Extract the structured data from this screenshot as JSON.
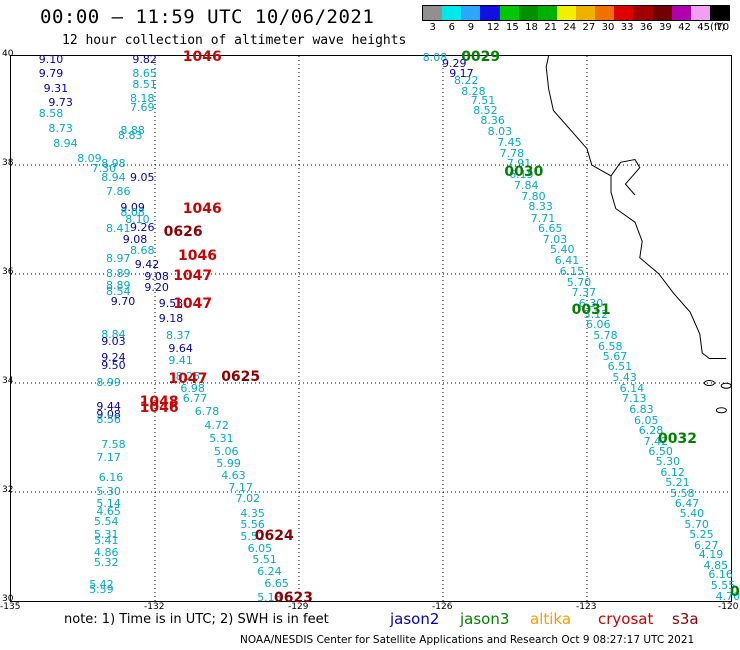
{
  "header": {
    "title": "00:00 – 11:59 UTC 10/06/2021",
    "subtitle": "12 hour collection of altimeter wave heights"
  },
  "colorbar": {
    "labels": [
      "3",
      "6",
      "9",
      "12",
      "15",
      "18",
      "21",
      "24",
      "27",
      "30",
      "33",
      "36",
      "39",
      "42",
      "45",
      "70",
      "(ft)"
    ],
    "colors": [
      "#909090",
      "#00e8e8",
      "#2aa8ff",
      "#1010e0",
      "#00c800",
      "#009000",
      "#00b000",
      "#f0f000",
      "#f0b000",
      "#f07000",
      "#e00000",
      "#a00000",
      "#700000",
      "#b000b0",
      "#f0a0f0",
      "#000000"
    ]
  },
  "axes": {
    "y_ticks": [
      "40",
      "38",
      "36",
      "34",
      "32",
      "30"
    ],
    "x_ticks": [
      "-135",
      "-132",
      "-129",
      "-126",
      "-123",
      "-120"
    ]
  },
  "map_data": {
    "region": {
      "lon": [
        -135,
        -120
      ],
      "lat": [
        30,
        40
      ]
    },
    "color_key": {
      "jason2": "#0000c0",
      "jason3": "#008000",
      "altika": "#ff9900",
      "cryosat": "#cc0000",
      "s3a": "#8b0000",
      "cyan": "#00aacc"
    },
    "tracks": [
      {
        "pass": "1046",
        "sat": "cryosat",
        "segments": [
          {
            "lon": -132.05,
            "lat": 39.94,
            "vals": [
              "9.82",
              "8.65",
              "8.51",
              "8.18",
              "7.69"
            ]
          },
          {
            "lon": -132.35,
            "lat": 38.24,
            "vals": [
              "8.88",
              "8.83",
              "8.98",
              "8.05",
              "7.86"
            ]
          }
        ]
      },
      {
        "pass": "0029",
        "sat": "jason3"
      },
      {
        "pass": "0030",
        "sat": "jason3"
      },
      {
        "pass": "0031",
        "sat": "jason3"
      },
      {
        "pass": "0032",
        "sat": "jason3"
      },
      {
        "pass": "0626",
        "sat": "s3a"
      },
      {
        "pass": "1047",
        "sat": "cryosat"
      },
      {
        "pass": "0625",
        "sat": "s3a"
      },
      {
        "pass": "1048",
        "sat": "cryosat"
      },
      {
        "pass": "0624",
        "sat": "s3a"
      },
      {
        "pass": "0623",
        "sat": "s3a"
      }
    ]
  },
  "pass_labels": [
    {
      "text": "1046",
      "sat": "cryosat",
      "lon": -131.4,
      "lat": 39.96
    },
    {
      "text": "1046",
      "sat": "cryosat",
      "lon": -131.4,
      "lat": 37.18
    },
    {
      "text": "1046",
      "sat": "cryosat",
      "lon": -131.5,
      "lat": 36.32
    },
    {
      "text": "1047",
      "sat": "cryosat",
      "lon": -131.6,
      "lat": 35.94
    },
    {
      "text": "1047",
      "sat": "cryosat",
      "lon": -131.6,
      "lat": 35.44
    },
    {
      "text": "1047",
      "sat": "cryosat",
      "lon": -131.7,
      "lat": 34.06
    },
    {
      "text": "1048",
      "sat": "cryosat",
      "lon": -132.3,
      "lat": 33.63
    },
    {
      "text": "1046",
      "sat": "cryosat",
      "lon": -132.3,
      "lat": 33.52
    },
    {
      "text": "0626",
      "sat": "s3a",
      "lon": -131.8,
      "lat": 36.75
    },
    {
      "text": "0625",
      "sat": "s3a",
      "lon": -130.6,
      "lat": 34.1
    },
    {
      "text": "0624",
      "sat": "s3a",
      "lon": -129.9,
      "lat": 31.17
    },
    {
      "text": "0623",
      "sat": "s3a",
      "lon": -129.5,
      "lat": 30.03
    },
    {
      "text": "0029",
      "sat": "jason3",
      "lon": -125.6,
      "lat": 39.96
    },
    {
      "text": "0030",
      "sat": "jason3",
      "lon": -124.7,
      "lat": 37.85
    },
    {
      "text": "0031",
      "sat": "jason3",
      "lon": -123.3,
      "lat": 35.33
    },
    {
      "text": "0032",
      "sat": "jason3",
      "lon": -121.5,
      "lat": 32.95
    },
    {
      "text": "0",
      "sat": "jason3",
      "lon": -120.0,
      "lat": 30.15
    }
  ],
  "wave_heights": [
    {
      "v": "9.10",
      "c": "jason2",
      "lon": -134.4,
      "lat": 39.9
    },
    {
      "v": "9.82",
      "c": "jason2",
      "lon": -132.45,
      "lat": 39.9
    },
    {
      "v": "9.79",
      "c": "jason2",
      "lon": -134.4,
      "lat": 39.65
    },
    {
      "v": "8.65",
      "c": "cyan",
      "lon": -132.45,
      "lat": 39.65
    },
    {
      "v": "9.31",
      "c": "jason2",
      "lon": -134.3,
      "lat": 39.38
    },
    {
      "v": "8.51",
      "c": "cyan",
      "lon": -132.45,
      "lat": 39.45
    },
    {
      "v": "9.73",
      "c": "jason2",
      "lon": -134.2,
      "lat": 39.12
    },
    {
      "v": "8.18",
      "c": "cyan",
      "lon": -132.5,
      "lat": 39.2
    },
    {
      "v": "7.69",
      "c": "cyan",
      "lon": -132.5,
      "lat": 39.02
    },
    {
      "v": "8.58",
      "c": "cyan",
      "lon": -134.4,
      "lat": 38.92
    },
    {
      "v": "8.73",
      "c": "cyan",
      "lon": -134.2,
      "lat": 38.64
    },
    {
      "v": "8.88",
      "c": "cyan",
      "lon": -132.7,
      "lat": 38.6
    },
    {
      "v": "8.83",
      "c": "cyan",
      "lon": -132.75,
      "lat": 38.52
    },
    {
      "v": "8.94",
      "c": "cyan",
      "lon": -134.1,
      "lat": 38.36
    },
    {
      "v": "8.09",
      "c": "cyan",
      "lon": -133.6,
      "lat": 38.1
    },
    {
      "v": "8.98",
      "c": "cyan",
      "lon": -133.1,
      "lat": 38.0
    },
    {
      "v": "7.30",
      "c": "cyan",
      "lon": -133.3,
      "lat": 37.9
    },
    {
      "v": "8.94",
      "c": "cyan",
      "lon": -133.1,
      "lat": 37.75
    },
    {
      "v": "9.05",
      "c": "jason2",
      "lon": -132.5,
      "lat": 37.75
    },
    {
      "v": "7.86",
      "c": "cyan",
      "lon": -133.0,
      "lat": 37.48
    },
    {
      "v": "9.09",
      "c": "jason2",
      "lon": -132.7,
      "lat": 37.2
    },
    {
      "v": "8.08",
      "c": "cyan",
      "lon": -132.7,
      "lat": 37.1
    },
    {
      "v": "8.10",
      "c": "cyan",
      "lon": -132.6,
      "lat": 36.98
    },
    {
      "v": "8.41",
      "c": "cyan",
      "lon": -133.0,
      "lat": 36.8
    },
    {
      "v": "9.26",
      "c": "jason2",
      "lon": -132.5,
      "lat": 36.82
    },
    {
      "v": "9.08",
      "c": "jason2",
      "lon": -132.65,
      "lat": 36.6
    },
    {
      "v": "8.68",
      "c": "cyan",
      "lon": -132.5,
      "lat": 36.4
    },
    {
      "v": "8.97",
      "c": "cyan",
      "lon": -133.0,
      "lat": 36.25
    },
    {
      "v": "9.42",
      "c": "jason2",
      "lon": -132.4,
      "lat": 36.15
    },
    {
      "v": "8.89",
      "c": "cyan",
      "lon": -133.0,
      "lat": 35.98
    },
    {
      "v": "9.08",
      "c": "jason2",
      "lon": -132.2,
      "lat": 35.93
    },
    {
      "v": "8.89",
      "c": "cyan",
      "lon": -133.0,
      "lat": 35.77
    },
    {
      "v": "9.20",
      "c": "jason2",
      "lon": -132.2,
      "lat": 35.72
    },
    {
      "v": "8.54",
      "c": "cyan",
      "lon": -133.0,
      "lat": 35.65
    },
    {
      "v": "9.70",
      "c": "jason2",
      "lon": -132.9,
      "lat": 35.47
    },
    {
      "v": "9.53",
      "c": "jason2",
      "lon": -131.9,
      "lat": 35.43
    },
    {
      "v": "9.18",
      "c": "jason2",
      "lon": -131.9,
      "lat": 35.15
    },
    {
      "v": "8.84",
      "c": "cyan",
      "lon": -133.1,
      "lat": 34.87
    },
    {
      "v": "8.37",
      "c": "cyan",
      "lon": -131.75,
      "lat": 34.85
    },
    {
      "v": "9.03",
      "c": "jason2",
      "lon": -133.1,
      "lat": 34.74
    },
    {
      "v": "9.64",
      "c": "jason2",
      "lon": -131.7,
      "lat": 34.6
    },
    {
      "v": "9.24",
      "c": "jason2",
      "lon": -133.1,
      "lat": 34.44
    },
    {
      "v": "9.41",
      "c": "cyan",
      "lon": -131.7,
      "lat": 34.38
    },
    {
      "v": "9.50",
      "c": "jason2",
      "lon": -133.1,
      "lat": 34.3
    },
    {
      "v": "8.25",
      "c": "cyan",
      "lon": -131.55,
      "lat": 34.1
    },
    {
      "v": "8.99",
      "c": "cyan",
      "lon": -133.2,
      "lat": 33.98
    },
    {
      "v": "6.98",
      "c": "cyan",
      "lon": -131.45,
      "lat": 33.88
    },
    {
      "v": "6.77",
      "c": "cyan",
      "lon": -131.4,
      "lat": 33.68
    },
    {
      "v": "9.44",
      "c": "jason2",
      "lon": -133.2,
      "lat": 33.55
    },
    {
      "v": "6.78",
      "c": "cyan",
      "lon": -131.15,
      "lat": 33.45
    },
    {
      "v": "9.08",
      "c": "jason2",
      "lon": -133.2,
      "lat": 33.4
    },
    {
      "v": "8.56",
      "c": "cyan",
      "lon": -133.2,
      "lat": 33.3
    },
    {
      "v": "4.72",
      "c": "cyan",
      "lon": -130.95,
      "lat": 33.2
    },
    {
      "v": "5.31",
      "c": "cyan",
      "lon": -130.85,
      "lat": 32.95
    },
    {
      "v": "7.58",
      "c": "cyan",
      "lon": -133.1,
      "lat": 32.84
    },
    {
      "v": "5.06",
      "c": "cyan",
      "lon": -130.75,
      "lat": 32.72
    },
    {
      "v": "7.17",
      "c": "cyan",
      "lon": -133.2,
      "lat": 32.6
    },
    {
      "v": "5.99",
      "c": "cyan",
      "lon": -130.7,
      "lat": 32.5
    },
    {
      "v": "4.63",
      "c": "cyan",
      "lon": -130.6,
      "lat": 32.28
    },
    {
      "v": "6.16",
      "c": "cyan",
      "lon": -133.15,
      "lat": 32.24
    },
    {
      "v": "7.17",
      "c": "cyan",
      "lon": -130.45,
      "lat": 32.06
    },
    {
      "v": "5.30",
      "c": "cyan",
      "lon": -133.2,
      "lat": 31.98
    },
    {
      "v": "7.02",
      "c": "cyan",
      "lon": -130.3,
      "lat": 31.85
    },
    {
      "v": "5.14",
      "c": "cyan",
      "lon": -133.2,
      "lat": 31.76
    },
    {
      "v": "4.65",
      "c": "cyan",
      "lon": -133.2,
      "lat": 31.62
    },
    {
      "v": "4.35",
      "c": "cyan",
      "lon": -130.2,
      "lat": 31.58
    },
    {
      "v": "5.54",
      "c": "cyan",
      "lon": -133.25,
      "lat": 31.44
    },
    {
      "v": "5.56",
      "c": "cyan",
      "lon": -130.2,
      "lat": 31.37
    },
    {
      "v": "5.31",
      "c": "cyan",
      "lon": -133.25,
      "lat": 31.2
    },
    {
      "v": "5.52",
      "c": "cyan",
      "lon": -130.2,
      "lat": 31.15
    },
    {
      "v": "5.41",
      "c": "cyan",
      "lon": -133.25,
      "lat": 31.08
    },
    {
      "v": "6.05",
      "c": "cyan",
      "lon": -130.05,
      "lat": 30.94
    },
    {
      "v": "4.86",
      "c": "cyan",
      "lon": -133.25,
      "lat": 30.86
    },
    {
      "v": "5.51",
      "c": "cyan",
      "lon": -129.95,
      "lat": 30.73
    },
    {
      "v": "5.32",
      "c": "cyan",
      "lon": -133.25,
      "lat": 30.67
    },
    {
      "v": "6.24",
      "c": "cyan",
      "lon": -129.85,
      "lat": 30.51
    },
    {
      "v": "5.42",
      "c": "cyan",
      "lon": -133.35,
      "lat": 30.28
    },
    {
      "v": "6.65",
      "c": "cyan",
      "lon": -129.7,
      "lat": 30.3
    },
    {
      "v": "5.59",
      "c": "cyan",
      "lon": -133.35,
      "lat": 30.18
    },
    {
      "v": "5.18",
      "c": "cyan",
      "lon": -129.85,
      "lat": 30.04
    },
    {
      "v": "8.08",
      "c": "cyan",
      "lon": -126.4,
      "lat": 39.95
    },
    {
      "v": "9.29",
      "c": "jason2",
      "lon": -126.0,
      "lat": 39.83
    },
    {
      "v": "9.17",
      "c": "jason2",
      "lon": -125.85,
      "lat": 39.65
    },
    {
      "v": "8.22",
      "c": "cyan",
      "lon": -125.75,
      "lat": 39.52
    },
    {
      "v": "8.28",
      "c": "cyan",
      "lon": -125.6,
      "lat": 39.33
    },
    {
      "v": "7.51",
      "c": "cyan",
      "lon": -125.4,
      "lat": 39.15
    },
    {
      "v": "8.52",
      "c": "cyan",
      "lon": -125.35,
      "lat": 38.98
    },
    {
      "v": "8.36",
      "c": "cyan",
      "lon": -125.2,
      "lat": 38.78
    },
    {
      "v": "8.03",
      "c": "cyan",
      "lon": -125.05,
      "lat": 38.58
    },
    {
      "v": "7.45",
      "c": "cyan",
      "lon": -124.85,
      "lat": 38.39
    },
    {
      "v": "7.78",
      "c": "cyan",
      "lon": -124.8,
      "lat": 38.18
    },
    {
      "v": "7.91",
      "c": "cyan",
      "lon": -124.65,
      "lat": 38.0
    },
    {
      "v": "6.15",
      "c": "cyan",
      "lon": -124.6,
      "lat": 37.8
    },
    {
      "v": "7.84",
      "c": "cyan",
      "lon": -124.5,
      "lat": 37.6
    },
    {
      "v": "7.80",
      "c": "cyan",
      "lon": -124.35,
      "lat": 37.4
    },
    {
      "v": "8.33",
      "c": "cyan",
      "lon": -124.2,
      "lat": 37.22
    },
    {
      "v": "7.71",
      "c": "cyan",
      "lon": -124.15,
      "lat": 37.0
    },
    {
      "v": "6.65",
      "c": "cyan",
      "lon": -124.0,
      "lat": 36.8
    },
    {
      "v": "7.03",
      "c": "cyan",
      "lon": -123.9,
      "lat": 36.6
    },
    {
      "v": "5.40",
      "c": "cyan",
      "lon": -123.75,
      "lat": 36.42
    },
    {
      "v": "6.41",
      "c": "cyan",
      "lon": -123.65,
      "lat": 36.22
    },
    {
      "v": "6.15",
      "c": "cyan",
      "lon": -123.55,
      "lat": 36.02
    },
    {
      "v": "5.70",
      "c": "cyan",
      "lon": -123.4,
      "lat": 35.82
    },
    {
      "v": "7.37",
      "c": "cyan",
      "lon": -123.3,
      "lat": 35.63
    },
    {
      "v": "6.30",
      "c": "cyan",
      "lon": -123.15,
      "lat": 35.43
    },
    {
      "v": "5.12",
      "c": "cyan",
      "lon": -123.05,
      "lat": 35.23
    },
    {
      "v": "6.06",
      "c": "cyan",
      "lon": -123.0,
      "lat": 35.04
    },
    {
      "v": "5.78",
      "c": "cyan",
      "lon": -122.85,
      "lat": 34.84
    },
    {
      "v": "6.58",
      "c": "cyan",
      "lon": -122.75,
      "lat": 34.64
    },
    {
      "v": "5.67",
      "c": "cyan",
      "lon": -122.65,
      "lat": 34.46
    },
    {
      "v": "6.51",
      "c": "cyan",
      "lon": -122.55,
      "lat": 34.27
    },
    {
      "v": "5.43",
      "c": "cyan",
      "lon": -122.45,
      "lat": 34.07
    },
    {
      "v": "6.14",
      "c": "cyan",
      "lon": -122.3,
      "lat": 33.88
    },
    {
      "v": "7.13",
      "c": "cyan",
      "lon": -122.25,
      "lat": 33.68
    },
    {
      "v": "6.83",
      "c": "cyan",
      "lon": -122.1,
      "lat": 33.48
    },
    {
      "v": "6.05",
      "c": "cyan",
      "lon": -122.0,
      "lat": 33.28
    },
    {
      "v": "6.28",
      "c": "cyan",
      "lon": -121.9,
      "lat": 33.1
    },
    {
      "v": "7.42",
      "c": "cyan",
      "lon": -121.8,
      "lat": 32.9
    },
    {
      "v": "6.50",
      "c": "cyan",
      "lon": -121.7,
      "lat": 32.72
    },
    {
      "v": "5.30",
      "c": "cyan",
      "lon": -121.55,
      "lat": 32.53
    },
    {
      "v": "6.12",
      "c": "cyan",
      "lon": -121.45,
      "lat": 32.33
    },
    {
      "v": "5.21",
      "c": "cyan",
      "lon": -121.35,
      "lat": 32.14
    },
    {
      "v": "5.58",
      "c": "cyan",
      "lon": -121.25,
      "lat": 31.95
    },
    {
      "v": "6.47",
      "c": "cyan",
      "lon": -121.15,
      "lat": 31.77
    },
    {
      "v": "5.40",
      "c": "cyan",
      "lon": -121.05,
      "lat": 31.58
    },
    {
      "v": "5.70",
      "c": "cyan",
      "lon": -120.95,
      "lat": 31.38
    },
    {
      "v": "5.25",
      "c": "cyan",
      "lon": -120.85,
      "lat": 31.2
    },
    {
      "v": "6.27",
      "c": "cyan",
      "lon": -120.75,
      "lat": 31.0
    },
    {
      "v": "4.19",
      "c": "cyan",
      "lon": -120.65,
      "lat": 30.83
    },
    {
      "v": "4.85",
      "c": "cyan",
      "lon": -120.55,
      "lat": 30.63
    },
    {
      "v": "6.16",
      "c": "cyan",
      "lon": -120.45,
      "lat": 30.45
    },
    {
      "v": "5.55",
      "c": "cyan",
      "lon": -120.4,
      "lat": 30.25
    },
    {
      "v": "4.70",
      "c": "cyan",
      "lon": -120.3,
      "lat": 30.05
    }
  ],
  "legend": {
    "note": "note:  1) Time is in UTC;  2) SWH is in feet",
    "sats": [
      {
        "text": "jason2",
        "sat": "jason2"
      },
      {
        "text": "jason3",
        "sat": "jason3"
      },
      {
        "text": "altika",
        "sat": "altika"
      },
      {
        "text": "cryosat",
        "sat": "cryosat"
      },
      {
        "text": "s3a",
        "sat": "s3a"
      }
    ]
  },
  "footer": "NOAA/NESDIS Center for Satellite Applications and Research     Oct  9 08:27:17 UTC 2021"
}
